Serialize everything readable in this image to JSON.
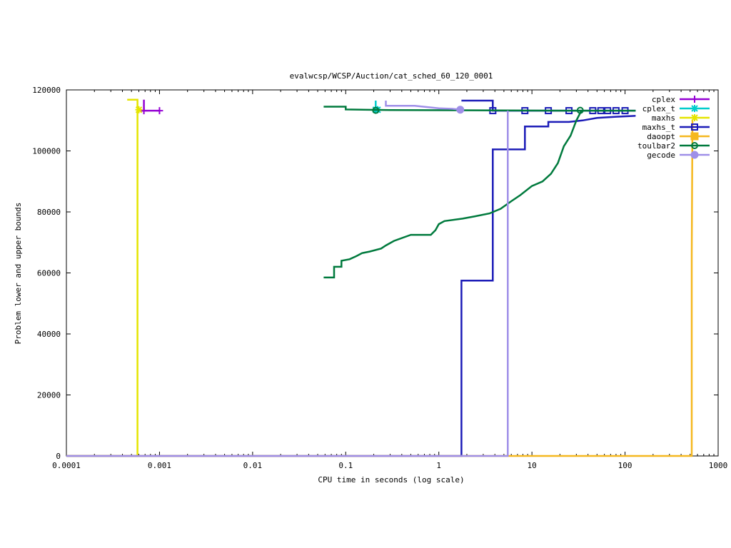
{
  "chart_data": {
    "type": "line",
    "title": "evalwcsp/WCSP/Auction/cat_sched_60_120_0001",
    "xlabel": "CPU time in seconds (log scale)",
    "ylabel": "Problem lower and upper bounds",
    "xscale": "log",
    "xlim": [
      0.0001,
      1000
    ],
    "ylim": [
      0,
      120000
    ],
    "xticks": [
      0.0001,
      0.001,
      0.01,
      0.1,
      1,
      10,
      100,
      1000
    ],
    "xtick_labels": [
      "0.0001",
      "0.001",
      "0.01",
      "0.1",
      "1",
      "10",
      "100",
      "1000"
    ],
    "yticks": [
      0,
      20000,
      40000,
      60000,
      80000,
      100000,
      120000
    ],
    "ytick_labels": [
      "0",
      "20000",
      "40000",
      "60000",
      "80000",
      "100000",
      "120000"
    ],
    "grid": false,
    "legend_position": "top-right",
    "series": [
      {
        "name": "cplex",
        "color": "#9400d3",
        "marker": "plus",
        "points": [
          [
            0.00063,
            113200
          ],
          [
            0.00068,
            113200
          ],
          [
            0.00085,
            113200
          ],
          [
            0.001,
            113200
          ]
        ],
        "upper": [
          [
            0.00068,
            116800
          ],
          [
            0.00068,
            113200
          ]
        ],
        "markers": [
          [
            0.00068,
            113200
          ],
          [
            0.001,
            113200
          ]
        ]
      },
      {
        "name": "cplex_t",
        "color": "#00cccc",
        "marker": "star",
        "points": [
          [
            0.21,
            116500
          ],
          [
            0.21,
            113500
          ],
          [
            0.23,
            113500
          ]
        ],
        "markers": [
          [
            0.21,
            113500
          ],
          [
            0.22,
            113500
          ]
        ]
      },
      {
        "name": "maxhs",
        "color": "#e5e500",
        "marker": "asterisk",
        "points": [
          [
            0.00045,
            116800
          ],
          [
            0.00058,
            116800
          ],
          [
            0.00058,
            114200
          ],
          [
            0.00062,
            113500
          ]
        ],
        "lower": [
          [
            0.0001,
            0
          ],
          [
            0.00058,
            0
          ],
          [
            0.00058,
            113500
          ]
        ],
        "markers": [
          [
            0.0006,
            113500
          ]
        ]
      },
      {
        "name": "maxhs_t",
        "color": "#1c1cb8",
        "marker": "square",
        "lower": [
          [
            0.0001,
            0
          ],
          [
            1.75,
            0
          ],
          [
            1.75,
            57500
          ],
          [
            3.8,
            57500
          ],
          [
            3.8,
            100500
          ],
          [
            8.4,
            100500
          ],
          [
            8.4,
            108000
          ],
          [
            15,
            108000
          ],
          [
            15,
            109500
          ],
          [
            25,
            109500
          ],
          [
            35,
            110000
          ],
          [
            50,
            110800
          ],
          [
            80,
            111200
          ],
          [
            130,
            111500
          ]
        ],
        "upper": [
          [
            1.75,
            116500
          ],
          [
            3.8,
            116500
          ],
          [
            3.8,
            113200
          ],
          [
            130,
            113200
          ]
        ],
        "markers": [
          [
            3.8,
            113200
          ],
          [
            8.4,
            113200
          ],
          [
            15,
            113200
          ],
          [
            25,
            113200
          ],
          [
            45,
            113200
          ],
          [
            55,
            113200
          ],
          [
            65,
            113200
          ],
          [
            80,
            113200
          ],
          [
            100,
            113200
          ]
        ]
      },
      {
        "name": "daoopt",
        "color": "#f5b820",
        "marker": "filled-square",
        "lower": [
          [
            0.0001,
            0
          ],
          [
            500,
            0
          ],
          [
            520,
            0
          ],
          [
            520,
            66000
          ],
          [
            530,
            110000
          ]
        ],
        "markers": []
      },
      {
        "name": "toulbar2",
        "color": "#007a3d",
        "marker": "circle",
        "lower": [
          [
            0.058,
            58500
          ],
          [
            0.075,
            58500
          ],
          [
            0.075,
            62000
          ],
          [
            0.09,
            62000
          ],
          [
            0.09,
            64000
          ],
          [
            0.11,
            64500
          ],
          [
            0.13,
            65500
          ],
          [
            0.15,
            66500
          ],
          [
            0.18,
            67000
          ],
          [
            0.24,
            68000
          ],
          [
            0.27,
            69000
          ],
          [
            0.33,
            70500
          ],
          [
            0.5,
            72500
          ],
          [
            0.82,
            72500
          ],
          [
            0.92,
            74000
          ],
          [
            1.0,
            76000
          ],
          [
            1.15,
            77000
          ],
          [
            1.8,
            77800
          ],
          [
            2.4,
            78500
          ],
          [
            3.5,
            79500
          ],
          [
            4.6,
            81000
          ],
          [
            6.0,
            83500
          ],
          [
            7.5,
            85500
          ],
          [
            10,
            88500
          ],
          [
            13,
            90000
          ],
          [
            16,
            92500
          ],
          [
            19,
            96000
          ],
          [
            22,
            101500
          ],
          [
            26,
            105000
          ],
          [
            30,
            110000
          ],
          [
            34,
            113200
          ]
        ],
        "upper": [
          [
            0.058,
            114500
          ],
          [
            0.1,
            114500
          ],
          [
            0.1,
            113600
          ],
          [
            0.3,
            113400
          ],
          [
            30,
            113200
          ],
          [
            130,
            113200
          ]
        ],
        "markers": [
          [
            0.21,
            113300
          ],
          [
            33,
            113300
          ]
        ]
      },
      {
        "name": "gecode",
        "color": "#9f8fe8",
        "marker": "filled-circle",
        "upper": [
          [
            0.27,
            116500
          ],
          [
            0.27,
            114800
          ],
          [
            0.55,
            114800
          ],
          [
            1.0,
            114000
          ],
          [
            1.4,
            113800
          ],
          [
            1.75,
            113500
          ]
        ],
        "lower": [
          [
            0.0001,
            0
          ],
          [
            5.5,
            0
          ],
          [
            5.5,
            113200
          ]
        ],
        "markers": [
          [
            1.7,
            113500
          ]
        ]
      }
    ]
  }
}
